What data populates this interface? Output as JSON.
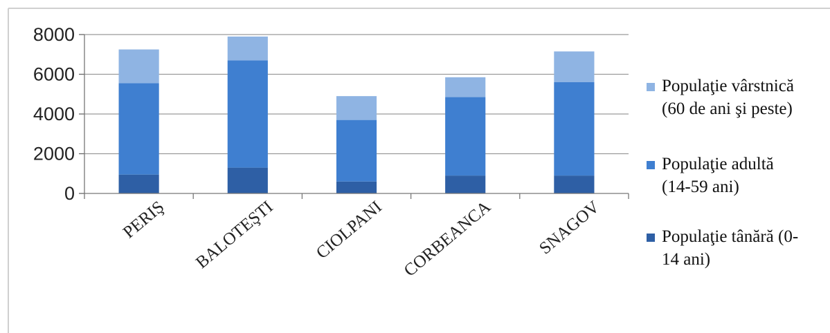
{
  "chart_data": {
    "type": "bar",
    "stacked": true,
    "categories": [
      "PERIŞ",
      "BALOTEŞTI",
      "CIOLPANI",
      "CORBEANCA",
      "SNAGOV"
    ],
    "series": [
      {
        "name_lines": [
          "Populaţie tânără (0-",
          "14 ani)"
        ],
        "color": "#2e5fa5",
        "values": [
          950,
          1300,
          600,
          900,
          900
        ]
      },
      {
        "name_lines": [
          "Populaţie adultă",
          "(14-59 ani)"
        ],
        "color": "#3f7fd0",
        "values": [
          4600,
          5400,
          3100,
          3950,
          4700
        ]
      },
      {
        "name_lines": [
          "Populaţie vârstnică",
          "(60 de ani şi peste)"
        ],
        "color": "#8fb4e3",
        "values": [
          1700,
          1200,
          1200,
          1000,
          1550
        ]
      }
    ],
    "yticks": [
      "0",
      "2000",
      "4000",
      "6000",
      "8000"
    ],
    "ylim": [
      0,
      8000
    ],
    "grid": true,
    "legend_position": "right"
  }
}
